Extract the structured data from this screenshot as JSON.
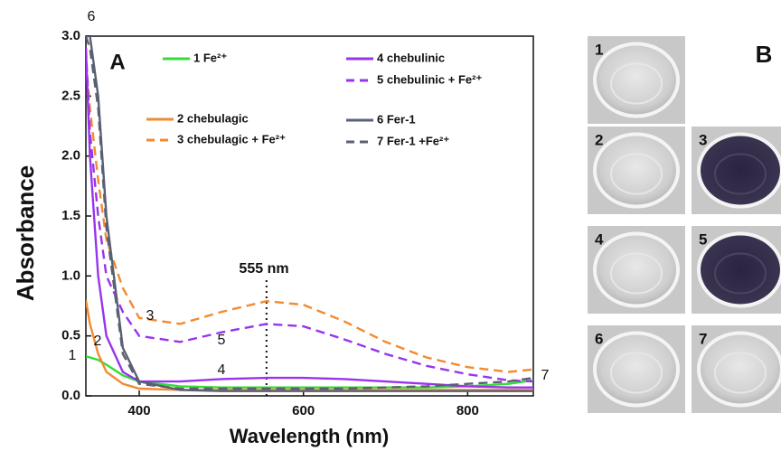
{
  "chart_data": {
    "type": "line",
    "panel_label": "A",
    "x_label": "Wavelength (nm)",
    "y_label": "Absorbance",
    "xlim": [
      335,
      880
    ],
    "ylim": [
      0,
      3
    ],
    "xticks": [
      400,
      600,
      800
    ],
    "yticks": [
      {
        "value": 0,
        "label": "0.0"
      },
      0.5,
      {
        "value": 1,
        "label": "1.0"
      },
      1.5,
      {
        "value": 2,
        "label": "2.0"
      },
      2.5,
      {
        "value": 3,
        "label": "3.0"
      }
    ],
    "x": [
      335,
      340,
      350,
      360,
      380,
      400,
      450,
      500,
      555,
      600,
      650,
      700,
      750,
      800,
      850,
      880
    ],
    "series": [
      {
        "name": "1 Fe²⁺",
        "color": "#33dd33",
        "dash": false,
        "values": [
          0.33,
          0.32,
          0.3,
          0.26,
          0.17,
          0.12,
          0.08,
          0.07,
          0.07,
          0.07,
          0.07,
          0.07,
          0.07,
          0.08,
          0.1,
          0.13
        ]
      },
      {
        "name": "2 chebulagic",
        "color": "#f28a30",
        "dash": false,
        "values": [
          0.8,
          0.6,
          0.35,
          0.2,
          0.1,
          0.06,
          0.05,
          0.05,
          0.05,
          0.05,
          0.05,
          0.05,
          0.05,
          0.05,
          0.05,
          0.05
        ]
      },
      {
        "name": "3 chebulagic + Fe²⁺",
        "color": "#f28a30",
        "dash": true,
        "values": [
          2.8,
          2.4,
          1.8,
          1.3,
          0.9,
          0.65,
          0.6,
          0.7,
          0.79,
          0.76,
          0.62,
          0.45,
          0.32,
          0.24,
          0.2,
          0.22
        ]
      },
      {
        "name": "4 chebulinic",
        "color": "#9933ee",
        "dash": false,
        "values": [
          2.9,
          2.0,
          1.0,
          0.5,
          0.2,
          0.12,
          0.12,
          0.14,
          0.15,
          0.15,
          0.14,
          0.12,
          0.1,
          0.08,
          0.07,
          0.07
        ]
      },
      {
        "name": "5 chebulinic  + Fe²⁺",
        "color": "#9933ee",
        "dash": true,
        "values": [
          2.9,
          2.2,
          1.5,
          1.0,
          0.7,
          0.5,
          0.45,
          0.53,
          0.6,
          0.58,
          0.47,
          0.35,
          0.25,
          0.18,
          0.13,
          0.12
        ]
      },
      {
        "name": "6 Fer-1",
        "color": "#5a5f73",
        "dash": false,
        "values": [
          3.0,
          3.0,
          2.5,
          1.5,
          0.4,
          0.12,
          0.05,
          0.04,
          0.04,
          0.04,
          0.04,
          0.04,
          0.04,
          0.04,
          0.04,
          0.04
        ]
      },
      {
        "name": "7 Fer-1 +Fe²⁺",
        "color": "#5a5f73",
        "dash": true,
        "values": [
          3.0,
          2.9,
          2.4,
          1.4,
          0.35,
          0.1,
          0.06,
          0.06,
          0.06,
          0.06,
          0.06,
          0.07,
          0.08,
          0.1,
          0.12,
          0.15
        ]
      }
    ],
    "curve_labels": [
      "1",
      "2",
      "3",
      "4",
      "5",
      "6",
      "7"
    ],
    "marker_x": 555,
    "marker_label": "555 nm"
  },
  "panel_b": {
    "label": "B",
    "wells": [
      "1",
      "2",
      "3",
      "4",
      "5",
      "6",
      "7"
    ]
  }
}
